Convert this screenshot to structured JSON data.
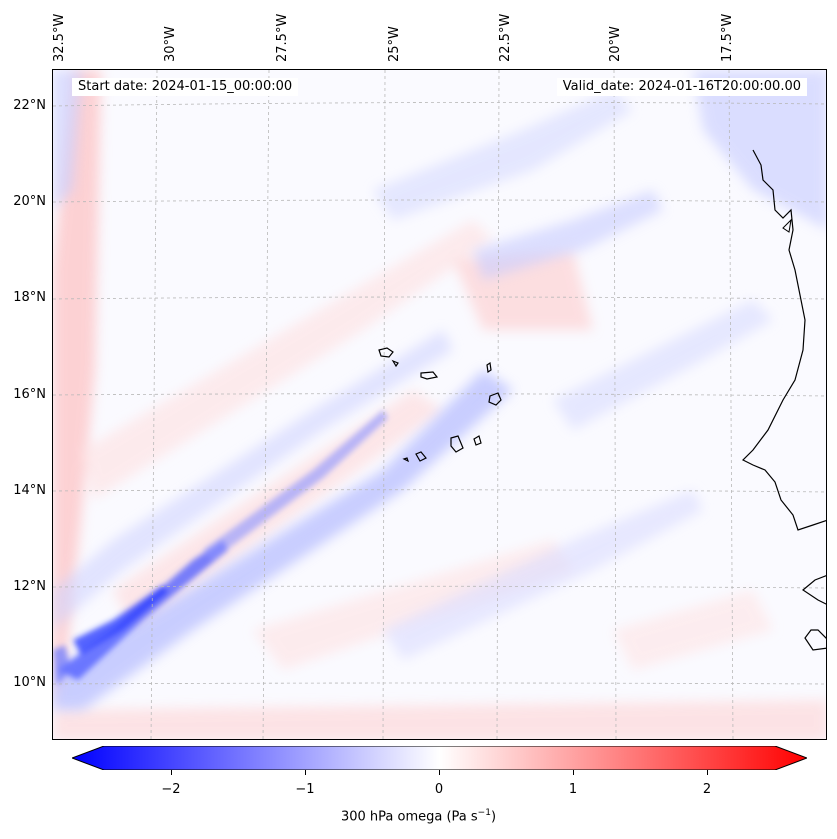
{
  "header": {
    "start_date": "Start date: 2024-01-15_00:00:00",
    "valid_date": "Valid_date: 2024-01-16T20:00:00.00"
  },
  "map": {
    "lon_labels": [
      "32.5°W",
      "30°W",
      "27.5°W",
      "25°W",
      "22.5°W",
      "20°W",
      "17.5°W"
    ],
    "lat_labels": [
      "22°N",
      "20°N",
      "18°N",
      "16°N",
      "14°N",
      "12°N",
      "10°N"
    ],
    "field": "300 hPa omega",
    "grid": "dashed gray"
  },
  "colorbar": {
    "ticks": [
      "−2",
      "−1",
      "0",
      "1",
      "2"
    ],
    "tick_values": [
      -2,
      -1,
      0,
      1,
      2
    ],
    "range": [
      -2.6,
      2.6
    ],
    "cmap": "bwr",
    "label_prefix": "300 hPa omega (Pa s",
    "label_exp": "−1",
    "label_suffix": ")",
    "colors": {
      "negative": "#0000ff",
      "zero": "#ffffff",
      "positive": "#ff0000"
    }
  }
}
